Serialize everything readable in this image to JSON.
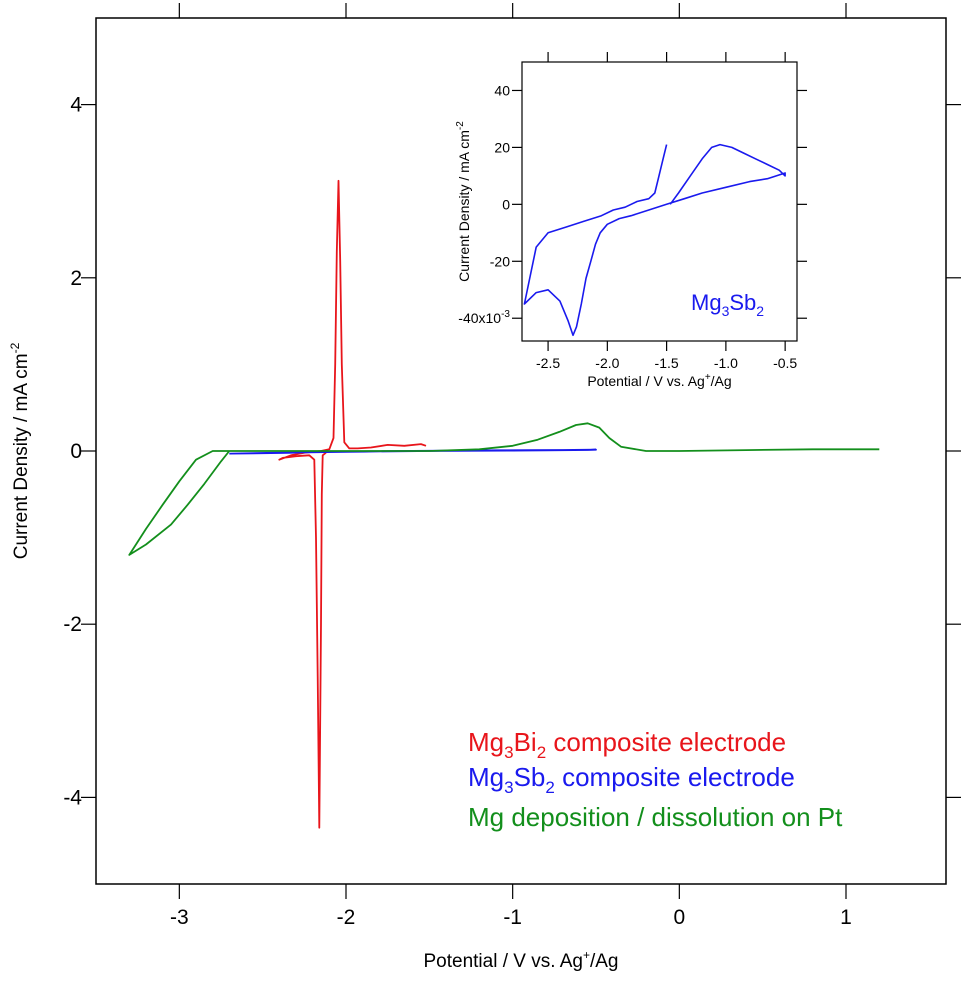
{
  "chart_data": [
    {
      "type": "line",
      "xlabel": {
        "base": "Potential / V vs. Ag",
        "sup": "+",
        "tail": "/Ag"
      },
      "ylabel": {
        "base": "Current Density / mA cm",
        "sup": "-2"
      },
      "xlim": [
        -3.5,
        1.6
      ],
      "ylim": [
        -5.0,
        5.0
      ],
      "xticks": [
        -3,
        -2,
        -1,
        0,
        1
      ],
      "xtick_labels": [
        "-3",
        "-2",
        "-1",
        "0",
        "1"
      ],
      "yticks": [
        -4,
        -2,
        0,
        2,
        4
      ],
      "ytick_labels": [
        "-4",
        "-2",
        "0",
        "2",
        "4"
      ],
      "grid": false,
      "legend_position": "bottom-right",
      "legend": [
        {
          "pre": "Mg",
          "sub1": "3",
          "mid": "Bi",
          "sub2": "2",
          "post": " composite electrode",
          "color": "#e8151b"
        },
        {
          "pre": "Mg",
          "sub1": "3",
          "mid": "Sb",
          "sub2": "2",
          "post": " composite electrode",
          "color": "#1a1aee"
        },
        {
          "pre": "Mg deposition / dissolution on Pt",
          "sub1": "",
          "mid": "",
          "sub2": "",
          "post": "",
          "color": "#138f1c"
        }
      ],
      "series": [
        {
          "color": "#e8151b",
          "points": [
            [
              -1.52,
              0.06
            ],
            [
              -1.55,
              0.08
            ],
            [
              -1.65,
              0.06
            ],
            [
              -1.75,
              0.07
            ],
            [
              -1.85,
              0.04
            ],
            [
              -1.93,
              0.03
            ],
            [
              -1.98,
              0.03
            ],
            [
              -2.01,
              0.1
            ],
            [
              -2.025,
              1.0
            ],
            [
              -2.035,
              2.2
            ],
            [
              -2.045,
              3.12
            ],
            [
              -2.055,
              2.3
            ],
            [
              -2.065,
              1.0
            ],
            [
              -2.075,
              0.15
            ],
            [
              -2.1,
              0.02
            ],
            [
              -2.15,
              0.0
            ],
            [
              -2.25,
              -0.02
            ],
            [
              -2.33,
              -0.05
            ],
            [
              -2.4,
              -0.1
            ],
            [
              -2.38,
              -0.08
            ],
            [
              -2.3,
              -0.06
            ],
            [
              -2.22,
              -0.05
            ],
            [
              -2.19,
              -0.1
            ],
            [
              -2.18,
              -1.0
            ],
            [
              -2.17,
              -2.6
            ],
            [
              -2.16,
              -4.35
            ],
            [
              -2.15,
              -2.0
            ],
            [
              -2.145,
              -0.5
            ],
            [
              -2.14,
              -0.05
            ],
            [
              -2.12,
              -0.02
            ]
          ]
        },
        {
          "color": "#1a1aee",
          "points": [
            [
              -2.7,
              -0.03
            ],
            [
              -2.5,
              -0.025
            ],
            [
              -2.3,
              -0.02
            ],
            [
              -2.1,
              -0.01
            ],
            [
              -1.9,
              -0.005
            ],
            [
              -1.7,
              0.0
            ],
            [
              -1.5,
              0.002
            ],
            [
              -1.3,
              0.005
            ],
            [
              -1.1,
              0.008
            ],
            [
              -0.9,
              0.01
            ],
            [
              -0.7,
              0.012
            ],
            [
              -0.5,
              0.015
            ],
            [
              -0.55,
              0.012
            ],
            [
              -0.8,
              0.008
            ],
            [
              -1.0,
              0.005
            ],
            [
              -1.5,
              0.0
            ],
            [
              -2.0,
              -0.01
            ],
            [
              -2.4,
              -0.02
            ],
            [
              -2.7,
              -0.03
            ]
          ]
        },
        {
          "color": "#138f1c",
          "points": [
            [
              1.2,
              0.02
            ],
            [
              0.8,
              0.02
            ],
            [
              0.4,
              0.01
            ],
            [
              0.0,
              0.0
            ],
            [
              -0.2,
              0.0
            ],
            [
              -0.35,
              0.05
            ],
            [
              -0.42,
              0.15
            ],
            [
              -0.48,
              0.27
            ],
            [
              -0.55,
              0.32
            ],
            [
              -0.62,
              0.3
            ],
            [
              -0.72,
              0.22
            ],
            [
              -0.85,
              0.13
            ],
            [
              -1.0,
              0.06
            ],
            [
              -1.2,
              0.02
            ],
            [
              -1.5,
              0.0
            ],
            [
              -2.0,
              0.0
            ],
            [
              -2.5,
              0.0
            ],
            [
              -2.8,
              0.0
            ],
            [
              -2.9,
              -0.1
            ],
            [
              -3.0,
              -0.35
            ],
            [
              -3.1,
              -0.62
            ],
            [
              -3.2,
              -0.9
            ],
            [
              -3.3,
              -1.2
            ],
            [
              -3.2,
              -1.08
            ],
            [
              -3.05,
              -0.85
            ],
            [
              -2.95,
              -0.62
            ],
            [
              -2.85,
              -0.38
            ],
            [
              -2.75,
              -0.12
            ],
            [
              -2.7,
              0.0
            ]
          ]
        }
      ]
    },
    {
      "type": "line",
      "xlabel": {
        "base": "Potential / V vs. Ag",
        "sup": "+",
        "tail": "/Ag"
      },
      "ylabel": {
        "base": "Current Density / mA cm",
        "sup": "-2"
      },
      "xlim": [
        -2.72,
        -0.4
      ],
      "ylim": [
        -0.048,
        0.05
      ],
      "xticks": [
        -2.5,
        -2.0,
        -1.5,
        -1.0,
        -0.5
      ],
      "xtick_labels": [
        "-2.5",
        "-2.0",
        "-1.5",
        "-1.0",
        "-0.5"
      ],
      "yticks": [
        -0.04,
        -0.02,
        0.0,
        0.02,
        0.04
      ],
      "ytick_labels": [
        "-40x10",
        "-20",
        "0",
        "20",
        "40"
      ],
      "ytick_exponent": "-3",
      "grid": false,
      "annotation": {
        "pre": "Mg",
        "sub1": "3",
        "mid": "Sb",
        "sub2": "2",
        "color": "#1a1aee"
      },
      "series": [
        {
          "color": "#1a1aee",
          "points": [
            [
              -1.5,
              0.021
            ],
            [
              -1.53,
              0.016
            ],
            [
              -1.57,
              0.009
            ],
            [
              -1.6,
              0.004
            ],
            [
              -1.65,
              0.002
            ],
            [
              -1.75,
              0.001
            ],
            [
              -1.85,
              -0.001
            ],
            [
              -1.95,
              -0.002
            ],
            [
              -2.05,
              -0.004
            ],
            [
              -2.2,
              -0.006
            ],
            [
              -2.35,
              -0.008
            ],
            [
              -2.5,
              -0.01
            ],
            [
              -2.6,
              -0.015
            ],
            [
              -2.65,
              -0.025
            ],
            [
              -2.7,
              -0.035
            ],
            [
              -2.6,
              -0.031
            ],
            [
              -2.5,
              -0.03
            ],
            [
              -2.4,
              -0.034
            ],
            [
              -2.33,
              -0.041
            ],
            [
              -2.29,
              -0.046
            ],
            [
              -2.26,
              -0.043
            ],
            [
              -2.22,
              -0.035
            ],
            [
              -2.18,
              -0.026
            ],
            [
              -2.14,
              -0.02
            ],
            [
              -2.1,
              -0.014
            ],
            [
              -2.06,
              -0.01
            ],
            [
              -2.0,
              -0.007
            ],
            [
              -1.9,
              -0.005
            ],
            [
              -1.8,
              -0.004
            ],
            [
              -1.65,
              -0.002
            ],
            [
              -1.5,
              0.0
            ],
            [
              -1.35,
              0.002
            ],
            [
              -1.2,
              0.004
            ],
            [
              -1.0,
              0.006
            ],
            [
              -0.8,
              0.008
            ],
            [
              -0.65,
              0.009
            ],
            [
              -0.5,
              0.011
            ],
            [
              -0.5,
              0.01
            ],
            [
              -0.55,
              0.012
            ],
            [
              -0.65,
              0.014
            ],
            [
              -0.75,
              0.016
            ],
            [
              -0.85,
              0.018
            ],
            [
              -0.95,
              0.02
            ],
            [
              -1.05,
              0.021
            ],
            [
              -1.12,
              0.02
            ],
            [
              -1.2,
              0.016
            ],
            [
              -1.3,
              0.01
            ],
            [
              -1.4,
              0.004
            ],
            [
              -1.47,
              0.0
            ]
          ]
        }
      ]
    }
  ]
}
